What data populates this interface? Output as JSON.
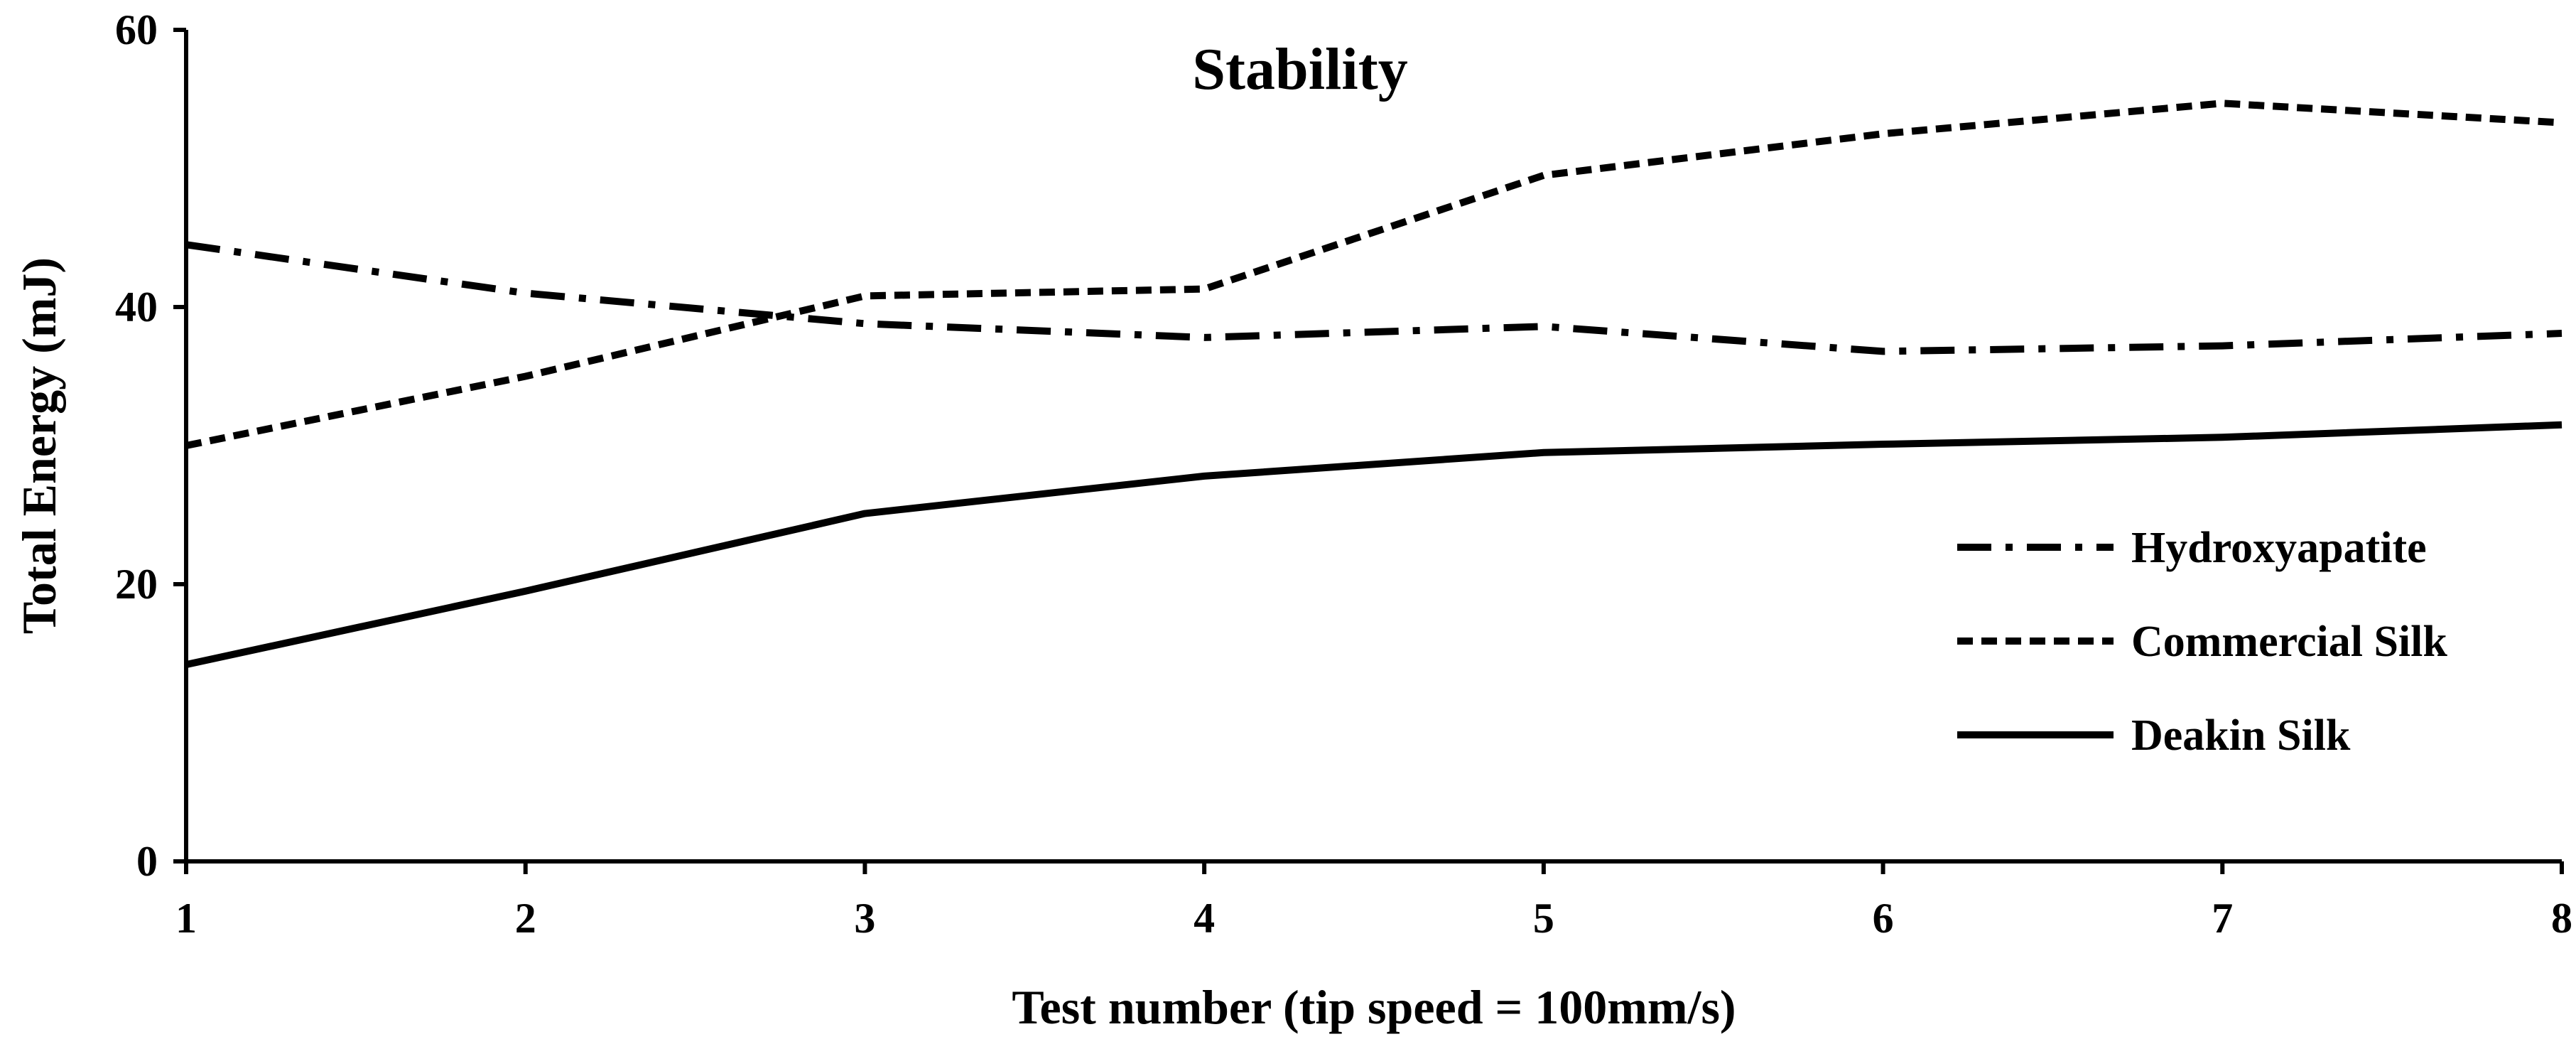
{
  "chart_data": {
    "type": "line",
    "title": "Stability",
    "xlabel": "Test number (tip speed = 100mm/s)",
    "ylabel": "Total Energy (mJ)",
    "x": [
      1,
      2,
      3,
      4,
      5,
      6,
      7,
      8
    ],
    "xlim": [
      1,
      8
    ],
    "ylim": [
      0,
      60
    ],
    "yticks": [
      0,
      20,
      40,
      60
    ],
    "grid": false,
    "legend_position": "right",
    "series": [
      {
        "name": "Hydroxyapatite",
        "style": "dash-dot",
        "values": [
          44.5,
          41.0,
          38.8,
          37.8,
          38.6,
          36.8,
          37.2,
          38.1
        ]
      },
      {
        "name": "Commercial Silk",
        "style": "dashed",
        "values": [
          30.0,
          35.0,
          40.8,
          41.3,
          49.5,
          52.5,
          54.7,
          53.3
        ]
      },
      {
        "name": "Deakin Silk",
        "style": "solid",
        "values": [
          14.2,
          19.5,
          25.1,
          27.8,
          29.5,
          30.1,
          30.6,
          31.5
        ]
      }
    ]
  }
}
